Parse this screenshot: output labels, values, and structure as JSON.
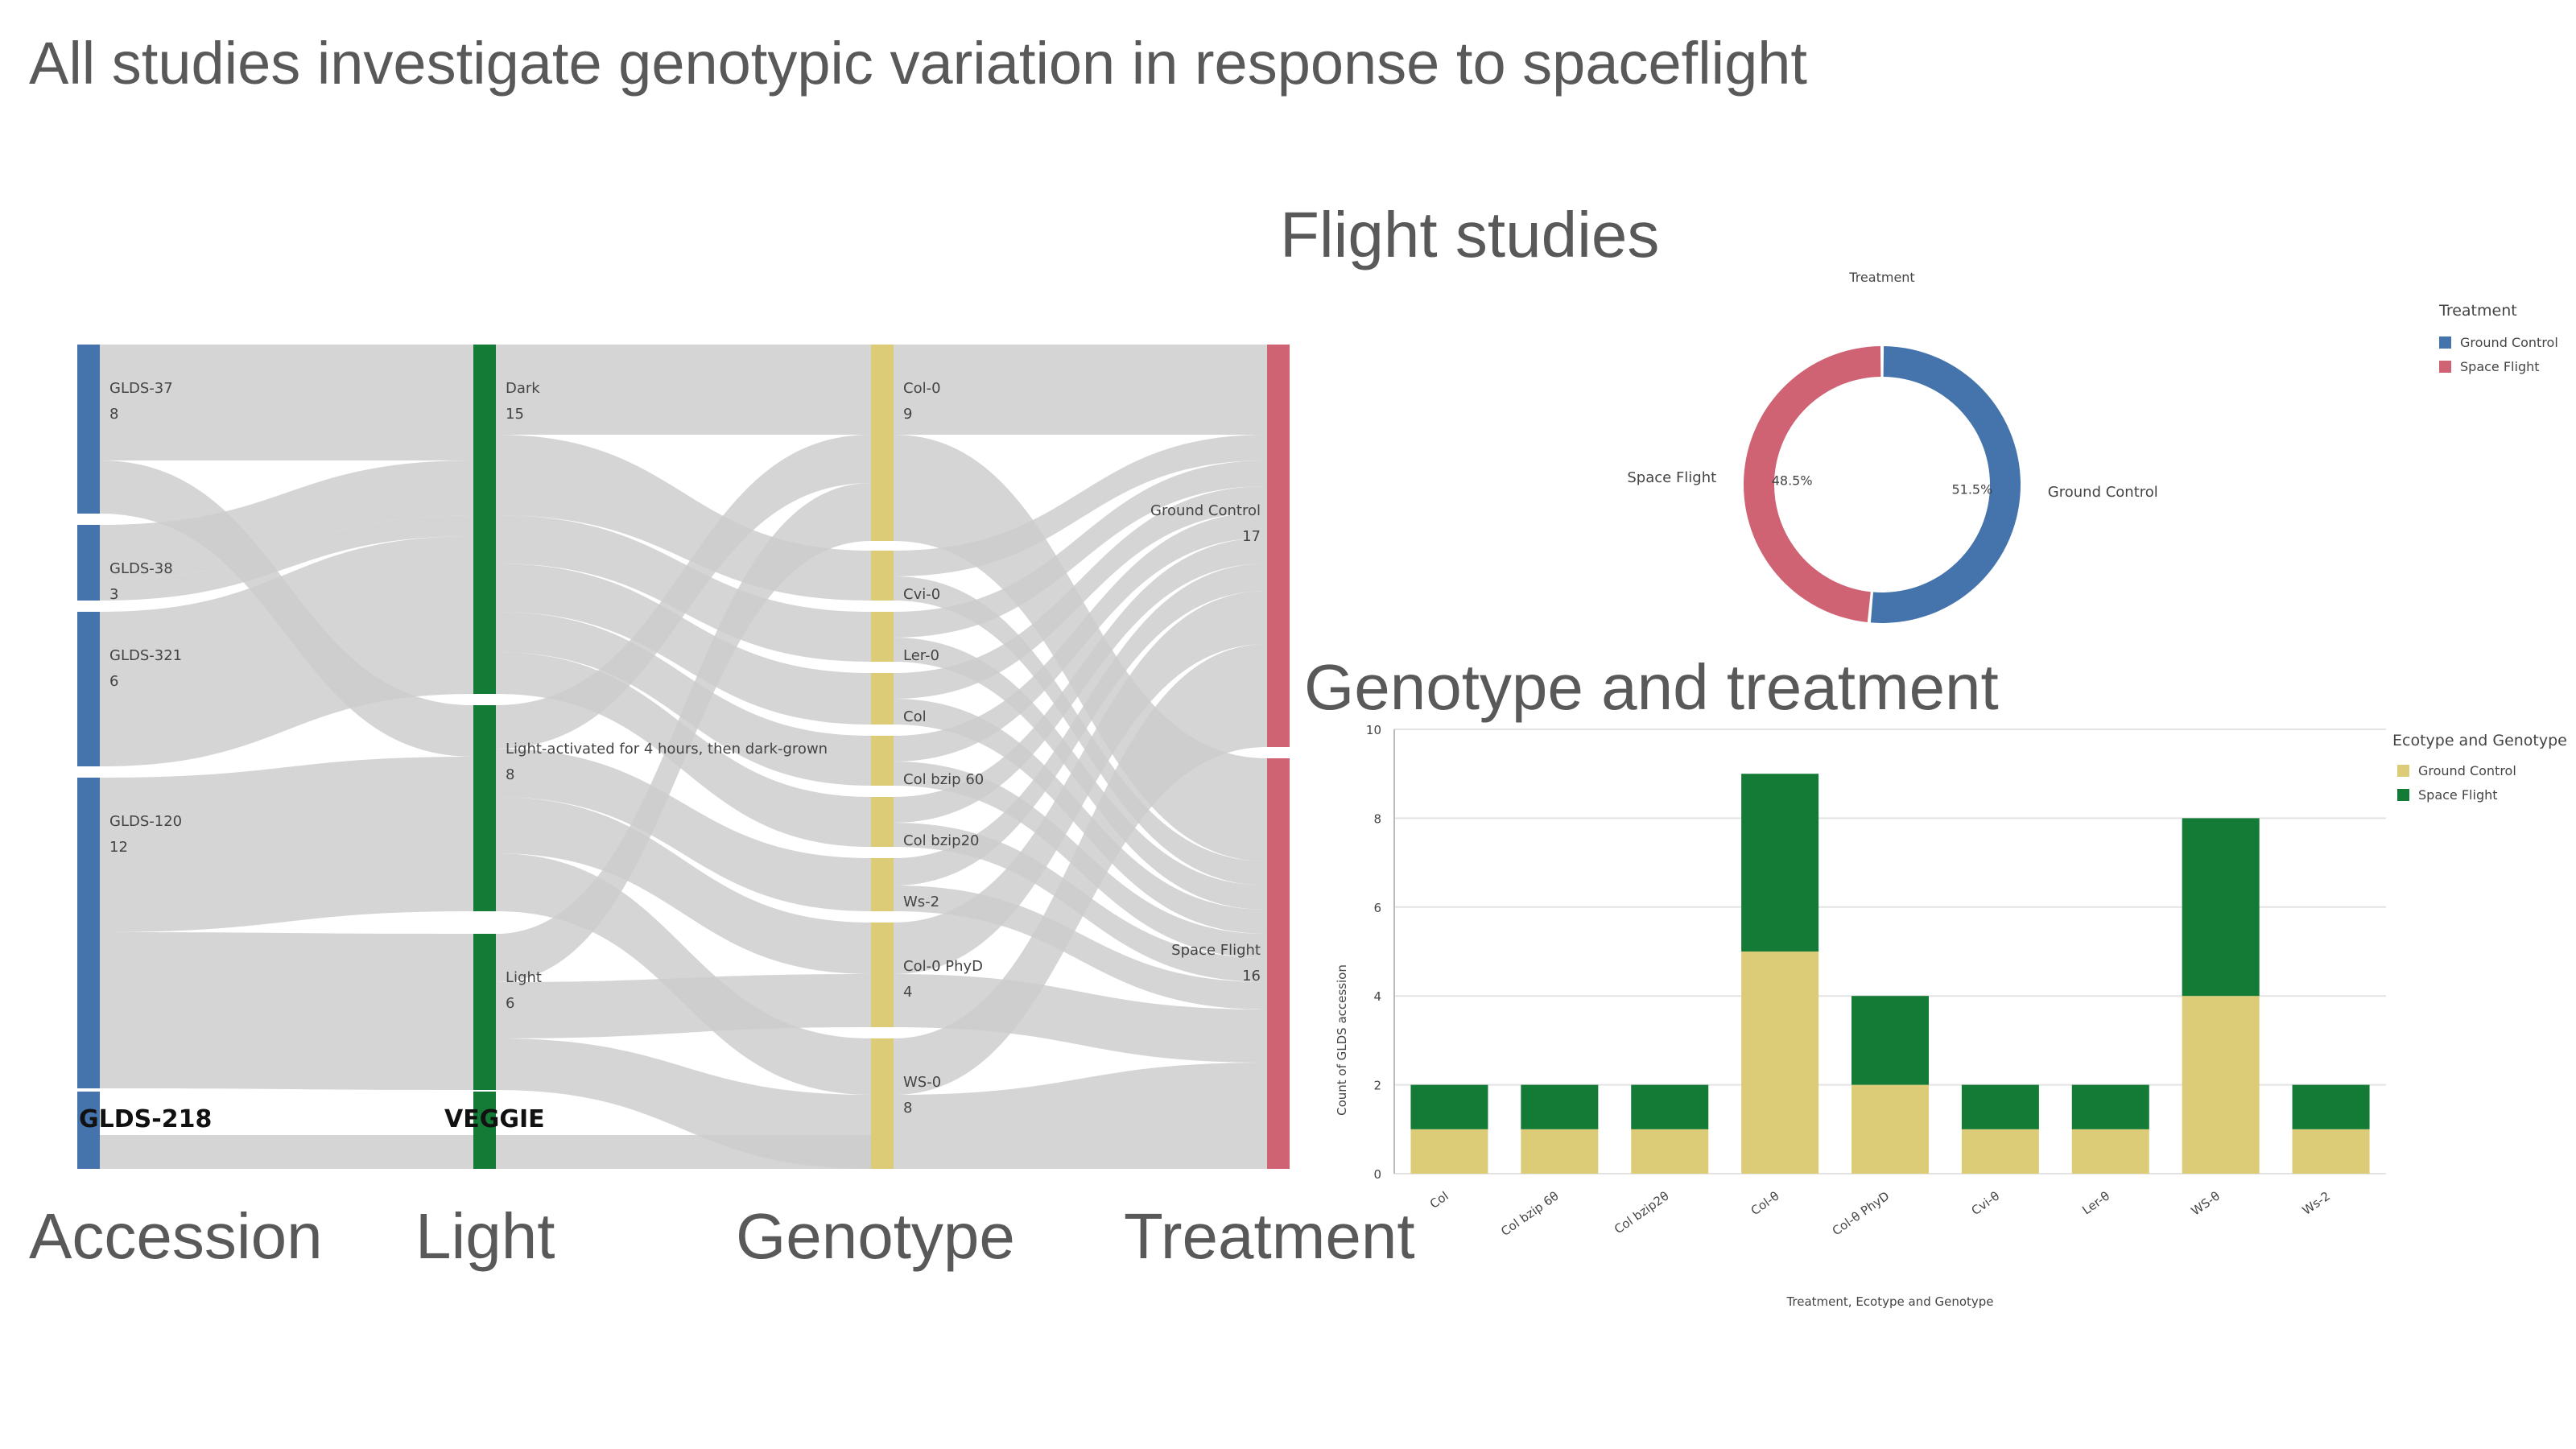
{
  "title": "All studies investigate genotypic variation in response to spaceflight",
  "section_titles": {
    "flight": "Flight studies",
    "genotype": "Genotype and treatment"
  },
  "colors": {
    "accession": "#4474ab",
    "light": "#137b36",
    "genotype": "#dccc78",
    "treatment": "#cf6273",
    "ground_control": "#4474ab",
    "space_flight": "#cf6273",
    "bar_ground": "#dccc78",
    "bar_space": "#137b36",
    "flow": "#cccccc"
  },
  "chart_data": [
    {
      "type": "sankey",
      "columns": [
        {
          "name": "Accession",
          "nodes": [
            {
              "label": "GLDS-37",
              "value": 8
            },
            {
              "label": "GLDS-38",
              "value": 3
            },
            {
              "label": "GLDS-321",
              "value": 6
            },
            {
              "label": "GLDS-120",
              "value": 12
            },
            {
              "label": "GLDS-218",
              "value": ""
            }
          ]
        },
        {
          "name": "Light",
          "nodes": [
            {
              "label": "Dark",
              "value": 15
            },
            {
              "label": "Light-activated for 4 hours, then dark-grown",
              "value": 8
            },
            {
              "label": "Light",
              "value": 6
            },
            {
              "label": "VEGGIE",
              "value": ""
            }
          ]
        },
        {
          "name": "Genotype",
          "nodes": [
            {
              "label": "Col-0",
              "value": 9
            },
            {
              "label": "Cvi-0",
              "value": ""
            },
            {
              "label": "Ler-0",
              "value": ""
            },
            {
              "label": "Col",
              "value": ""
            },
            {
              "label": "Col bzip 60",
              "value": ""
            },
            {
              "label": "Col bzip20",
              "value": ""
            },
            {
              "label": "Ws-2",
              "value": ""
            },
            {
              "label": "Col-0 PhyD",
              "value": 4
            },
            {
              "label": "WS-0",
              "value": 8
            }
          ]
        },
        {
          "name": "Treatment",
          "nodes": [
            {
              "label": "Ground Control",
              "value": 17
            },
            {
              "label": "Space Flight",
              "value": 16
            }
          ]
        }
      ]
    },
    {
      "type": "pie",
      "title": "Treatment",
      "legend_title": "Treatment",
      "legend_position": "top-right",
      "slices": [
        {
          "label": "Ground Control",
          "value": 51.5,
          "value_label": "51.5%"
        },
        {
          "label": "Space Flight",
          "value": 48.5,
          "value_label": "48.5%"
        }
      ]
    },
    {
      "type": "bar",
      "stacked": true,
      "categories": [
        "Col",
        "Col bzip 6θ",
        "Col bzip2θ",
        "Col-θ",
        "Col-θ PhyD",
        "Cvi-θ",
        "Ler-θ",
        "WS-θ",
        "Ws-2"
      ],
      "series": [
        {
          "name": "Ground Control",
          "values": [
            1,
            1,
            1,
            5,
            2,
            1,
            1,
            4,
            1
          ]
        },
        {
          "name": "Space Flight",
          "values": [
            1,
            1,
            1,
            4,
            2,
            1,
            1,
            4,
            1
          ]
        }
      ],
      "xlabel": "Treatment, Ecotype and Genotype",
      "ylabel": "Count of GLDS accession",
      "ylim": [
        0,
        10
      ],
      "yticks": [
        0,
        2,
        4,
        6,
        8,
        10
      ],
      "legend_title": "Ecotype and Genotype",
      "legend_position": "top-right",
      "grid": true
    }
  ]
}
